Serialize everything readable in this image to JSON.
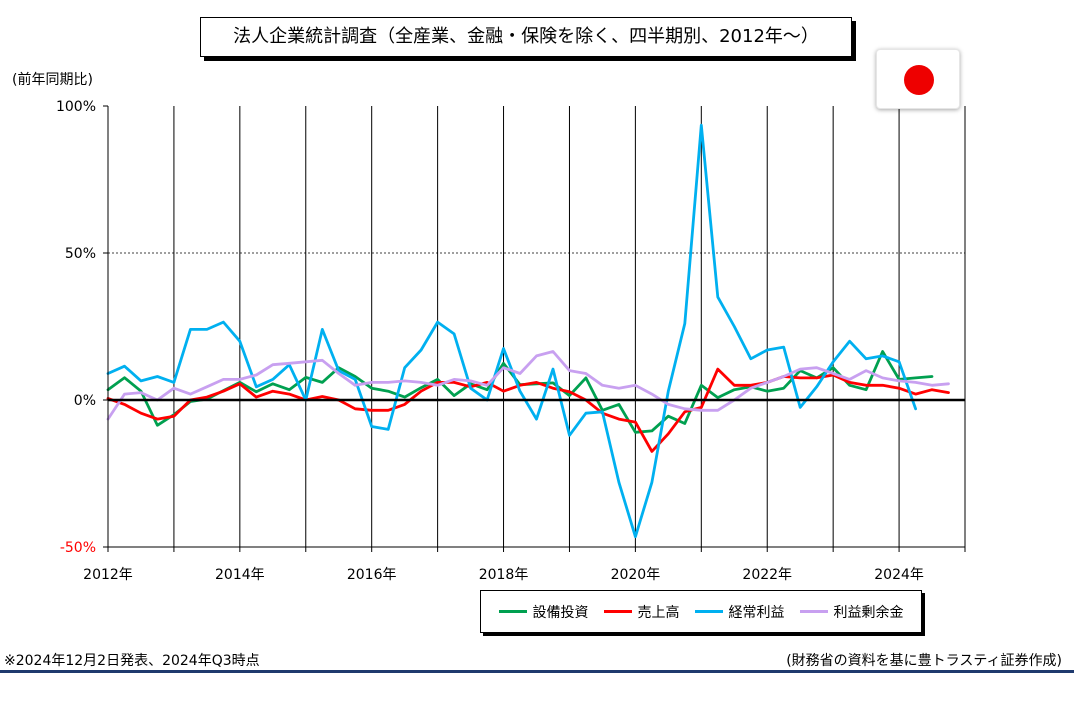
{
  "title": "法人企業統計調査（全産業、金融・保険を除く、四半期別、2012年～）",
  "unit_label": "(前年同期比)",
  "footnote": "※2024年12月2日発表、2024年Q3時点",
  "source": "(財務省の資料を基に豊トラスティ証券作成)",
  "flag": "Japan",
  "chart_data": {
    "type": "line",
    "y_unit": "%",
    "ylim": [
      -50,
      100
    ],
    "yticks": [
      {
        "value": 100,
        "label": "100%",
        "color": "#000000"
      },
      {
        "value": 50,
        "label": "50%",
        "color": "#000000"
      },
      {
        "value": 0,
        "label": "0%",
        "color": "#000000"
      },
      {
        "value": -50,
        "label": "-50%",
        "color": "#ff0000"
      }
    ],
    "xlim": [
      2012,
      2025
    ],
    "xticks": [
      {
        "value": 2012,
        "label": "2012年"
      },
      {
        "value": 2014,
        "label": "2014年"
      },
      {
        "value": 2016,
        "label": "2016年"
      },
      {
        "value": 2018,
        "label": "2018年"
      },
      {
        "value": 2020,
        "label": "2020年"
      },
      {
        "value": 2022,
        "label": "2022年"
      },
      {
        "value": 2024,
        "label": "2024年"
      }
    ],
    "x_start": 2012.0,
    "x_step": 0.25,
    "grid": {
      "vertical_years": true,
      "horizontal_dashed": [
        50
      ]
    },
    "legend_position": "bottom-right",
    "series": [
      {
        "name": "設備投資",
        "color": "#00a050",
        "values": [
          3.5,
          7.6,
          3.0,
          -8.6,
          -5.0,
          -0.5,
          0.3,
          3.2,
          6.0,
          2.8,
          5.5,
          3.5,
          7.7,
          6.0,
          11.0,
          8.0,
          4.0,
          3.0,
          1.0,
          4.2,
          7.0,
          1.5,
          5.5,
          3.5,
          12.5,
          5.2,
          5.5,
          5.8,
          1.5,
          7.5,
          -3.5,
          -1.5,
          -11.0,
          -10.5,
          -5.5,
          -8.0,
          5.0,
          0.8,
          3.5,
          4.5,
          3.0,
          4.0,
          10.0,
          7.5,
          11.0,
          5.0,
          3.5,
          16.5,
          7.0,
          7.5,
          8.0
        ]
      },
      {
        "name": "売上高",
        "color": "#ff0000",
        "values": [
          0.5,
          -1.5,
          -4.5,
          -6.5,
          -5.5,
          0.0,
          1.0,
          3.0,
          5.5,
          1.0,
          3.0,
          2.0,
          0.0,
          1.2,
          0.0,
          -3.0,
          -3.5,
          -3.5,
          -1.5,
          3.0,
          6.0,
          6.0,
          4.5,
          6.0,
          3.0,
          5.0,
          6.0,
          4.0,
          2.8,
          0.0,
          -4.5,
          -6.5,
          -7.5,
          -17.5,
          -11.5,
          -4.0,
          -2.5,
          10.5,
          5.0,
          5.0,
          6.0,
          8.0,
          7.5,
          7.5,
          8.5,
          6.0,
          5.0,
          5.0,
          4.0,
          2.0,
          3.5,
          2.5
        ]
      },
      {
        "name": "経常利益",
        "color": "#00b0f0",
        "values": [
          9.0,
          11.5,
          6.5,
          8.0,
          6.0,
          24.0,
          24.0,
          26.5,
          20.0,
          4.5,
          7.0,
          12.0,
          0.0,
          24.0,
          10.0,
          7.0,
          -9.0,
          -10.0,
          11.0,
          17.0,
          26.5,
          22.5,
          4.0,
          0.0,
          17.5,
          3.0,
          -6.5,
          10.5,
          -12.0,
          -4.5,
          -4.0,
          -28.0,
          -46.5,
          -28.0,
          3.0,
          26.0,
          93.5,
          35.0,
          25.0,
          14.0,
          17.0,
          18.0,
          -2.5,
          4.5,
          13.0,
          20.0,
          14.0,
          15.0,
          13.0,
          -3.0
        ]
      },
      {
        "name": "利益剰余金",
        "color": "#c8a0f0",
        "values": [
          -6.5,
          2.0,
          2.5,
          0.0,
          4.0,
          2.0,
          4.5,
          7.0,
          7.0,
          8.5,
          12.0,
          12.5,
          13.0,
          13.5,
          9.0,
          5.0,
          6.0,
          6.0,
          6.5,
          6.0,
          5.0,
          7.0,
          6.5,
          5.0,
          11.0,
          9.0,
          15.0,
          16.5,
          10.0,
          9.0,
          5.0,
          4.0,
          5.0,
          2.0,
          -1.5,
          -3.0,
          -3.5,
          -3.5,
          0.0,
          4.0,
          6.0,
          8.0,
          10.5,
          11.0,
          9.0,
          7.0,
          10.0,
          7.5,
          6.5,
          6.0,
          5.0,
          5.5
        ]
      }
    ]
  }
}
